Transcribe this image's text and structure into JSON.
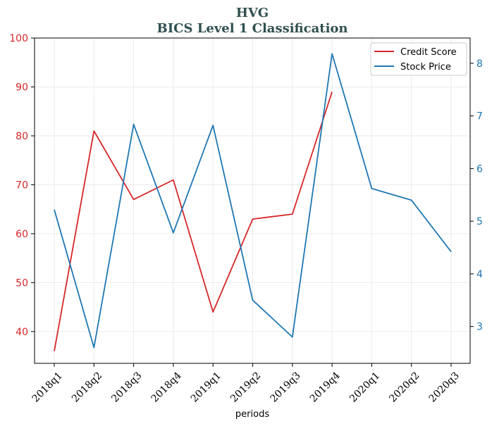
{
  "chart_data": {
    "type": "line",
    "title": "HVG",
    "subtitle": "BICS Level 1 Classification",
    "xlabel": "periods",
    "categories": [
      "2018q1",
      "2018q2",
      "2018q3",
      "2018q4",
      "2019q1",
      "2019q2",
      "2019q3",
      "2019q4",
      "2020q1",
      "2020q2",
      "2020q3"
    ],
    "series": [
      {
        "name": "Credit Score",
        "axis": "left",
        "color": "#d62728",
        "values": [
          36,
          81,
          67,
          71,
          44,
          63,
          64,
          89,
          null,
          null,
          null
        ]
      },
      {
        "name": "Stock Price",
        "axis": "right",
        "color": "#1f77b4",
        "values": [
          5.22,
          2.6,
          6.84,
          4.78,
          6.82,
          3.5,
          2.8,
          8.18,
          5.62,
          5.4,
          4.42
        ]
      }
    ],
    "left_axis": {
      "ylim": [
        33.5,
        100
      ],
      "ticks": [
        40,
        50,
        60,
        70,
        80,
        90,
        100
      ],
      "color": "#d62728"
    },
    "right_axis": {
      "ylim": [
        2.3,
        8.48
      ],
      "ticks": [
        3,
        4,
        5,
        6,
        7,
        8
      ],
      "color": "#1f77b4"
    },
    "grid": true,
    "legend": "top-right"
  }
}
